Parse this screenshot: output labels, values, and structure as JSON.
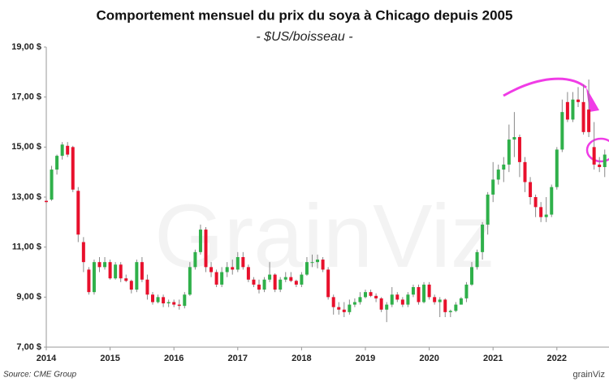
{
  "chart_data": {
    "type": "candlestick",
    "title": "Comportement mensuel du prix du soya à Chicago depuis 2005",
    "subtitle": "- $US/boisseau -",
    "source": "Source: CME Group",
    "logo": "grainViz",
    "watermark": "GrainViz",
    "up_color": "#2fb04a",
    "down_color": "#e8102c",
    "ylim": [
      7,
      19
    ],
    "yticks": [
      {
        "value": 7,
        "label": "7,00 $"
      },
      {
        "value": 9,
        "label": "9,00 $"
      },
      {
        "value": 11,
        "label": "11,00 $"
      },
      {
        "value": 13,
        "label": "13,00 $"
      },
      {
        "value": 15,
        "label": "15,00 $"
      },
      {
        "value": 17,
        "label": "17,00 $"
      },
      {
        "value": 19,
        "label": "19,00 $"
      }
    ],
    "categories": [
      "2014",
      null,
      null,
      null,
      null,
      null,
      null,
      null,
      null,
      null,
      null,
      null,
      "2015",
      null,
      null,
      null,
      null,
      null,
      null,
      null,
      null,
      null,
      null,
      null,
      "2016",
      null,
      null,
      null,
      null,
      null,
      null,
      null,
      null,
      null,
      null,
      null,
      "2017",
      null,
      null,
      null,
      null,
      null,
      null,
      null,
      null,
      null,
      null,
      null,
      "2018",
      null,
      null,
      null,
      null,
      null,
      null,
      null,
      null,
      null,
      null,
      null,
      "2019",
      null,
      null,
      null,
      null,
      null,
      null,
      null,
      null,
      null,
      null,
      null,
      "2020",
      null,
      null,
      null,
      null,
      null,
      null,
      null,
      null,
      null,
      null,
      null,
      "2021",
      null,
      null,
      null,
      null,
      null,
      null,
      null,
      null,
      null,
      null,
      null,
      "2022",
      null,
      null,
      null,
      null,
      null,
      null,
      null,
      null,
      null
    ],
    "open": [
      12.85,
      12.9,
      14.1,
      14.65,
      15.05,
      15.0,
      13.25,
      11.2,
      10.1,
      9.2,
      10.4,
      10.2,
      10.4,
      9.75,
      10.3,
      9.75,
      9.65,
      9.3,
      10.4,
      9.7,
      9.1,
      8.8,
      9.0,
      8.75,
      8.8,
      8.7,
      8.65,
      9.1,
      10.2,
      10.8,
      11.7,
      10.2,
      10.0,
      9.5,
      10.0,
      10.2,
      10.1,
      10.6,
      10.2,
      9.7,
      9.5,
      9.3,
      9.7,
      9.9,
      9.3,
      9.7,
      9.8,
      9.65,
      9.5,
      9.9,
      10.4,
      10.4,
      10.5,
      10.1,
      9.0,
      8.6,
      8.5,
      8.4,
      8.7,
      8.8,
      9.0,
      9.2,
      9.05,
      8.95,
      8.5,
      8.7,
      9.1,
      8.9,
      8.7,
      9.1,
      9.4,
      8.8,
      9.5,
      9.0,
      8.8,
      8.9,
      8.4,
      8.45,
      8.7,
      8.95,
      9.5,
      10.2,
      10.8,
      11.9,
      13.1,
      13.7,
      14.1,
      14.3,
      15.3,
      15.4,
      14.4,
      13.6,
      13.0,
      12.6,
      12.2,
      12.3,
      13.4,
      14.9,
      16.8,
      16.1,
      16.9,
      16.8,
      16.5,
      15.0,
      14.3,
      14.2
    ],
    "high": [
      12.95,
      14.25,
      14.7,
      15.2,
      15.2,
      15.05,
      13.4,
      11.4,
      10.2,
      10.5,
      10.6,
      10.6,
      10.5,
      10.4,
      10.4,
      9.9,
      9.7,
      10.5,
      10.6,
      9.9,
      9.2,
      9.1,
      9.1,
      8.9,
      8.9,
      8.9,
      9.2,
      10.4,
      10.9,
      11.9,
      11.8,
      10.4,
      10.1,
      10.2,
      10.4,
      10.5,
      10.8,
      10.8,
      10.3,
      9.8,
      9.7,
      9.8,
      10.4,
      9.95,
      9.8,
      10.0,
      10.0,
      9.7,
      10.0,
      10.6,
      10.7,
      10.7,
      10.6,
      10.2,
      9.1,
      8.8,
      8.8,
      8.9,
      8.95,
      9.2,
      9.3,
      9.3,
      9.15,
      9.0,
      8.8,
      9.4,
      9.2,
      9.0,
      9.2,
      9.5,
      9.5,
      9.6,
      9.6,
      9.1,
      9.0,
      8.95,
      8.5,
      8.8,
      9.0,
      9.6,
      10.4,
      10.9,
      12.0,
      13.2,
      14.4,
      14.3,
      14.6,
      15.9,
      16.4,
      15.5,
      14.6,
      13.8,
      13.1,
      12.8,
      13.0,
      13.5,
      15.0,
      16.9,
      17.2,
      17.2,
      17.4,
      17.5,
      17.7,
      16.0,
      14.6,
      14.9
    ],
    "low": [
      12.75,
      12.85,
      13.9,
      14.5,
      14.6,
      13.2,
      11.2,
      10.0,
      9.1,
      9.1,
      10.0,
      10.1,
      9.7,
      9.7,
      9.6,
      9.6,
      9.15,
      9.2,
      9.6,
      8.9,
      8.7,
      8.75,
      8.6,
      8.6,
      8.6,
      8.5,
      8.55,
      9.05,
      10.1,
      10.7,
      10.0,
      9.8,
      9.4,
      9.4,
      9.8,
      9.9,
      10.0,
      10.1,
      9.6,
      9.4,
      9.15,
      9.2,
      9.6,
      9.2,
      9.2,
      9.6,
      9.6,
      9.4,
      9.4,
      9.85,
      10.2,
      10.15,
      10.0,
      8.9,
      8.3,
      8.3,
      8.2,
      8.3,
      8.6,
      8.7,
      8.95,
      9.0,
      8.8,
      8.4,
      8.0,
      8.6,
      8.8,
      8.6,
      8.6,
      9.0,
      8.7,
      8.75,
      8.9,
      8.7,
      8.2,
      8.2,
      8.2,
      8.4,
      8.7,
      8.8,
      9.45,
      10.1,
      10.5,
      11.5,
      12.8,
      13.5,
      13.6,
      14.0,
      14.6,
      13.8,
      13.2,
      12.7,
      12.2,
      12.0,
      12.0,
      12.2,
      13.3,
      14.8,
      16.0,
      16.0,
      16.6,
      15.5,
      15.4,
      14.1,
      14.0,
      13.8
    ],
    "close": [
      12.8,
      14.1,
      14.65,
      15.1,
      14.7,
      13.3,
      11.5,
      10.4,
      9.2,
      10.4,
      10.2,
      10.4,
      9.75,
      10.3,
      9.75,
      9.65,
      9.3,
      10.4,
      9.7,
      9.1,
      8.8,
      9.0,
      8.75,
      8.8,
      8.7,
      8.65,
      9.1,
      10.2,
      10.8,
      11.7,
      10.2,
      10.0,
      9.5,
      10.0,
      10.2,
      10.1,
      10.6,
      10.2,
      9.7,
      9.5,
      9.3,
      9.7,
      9.9,
      9.3,
      9.7,
      9.8,
      9.65,
      9.5,
      9.9,
      10.4,
      10.4,
      10.5,
      10.1,
      9.0,
      8.6,
      8.5,
      8.4,
      8.7,
      8.8,
      9.0,
      9.2,
      9.05,
      8.95,
      8.5,
      8.7,
      9.1,
      8.9,
      8.7,
      9.1,
      9.4,
      8.8,
      9.5,
      9.0,
      8.8,
      8.9,
      8.4,
      8.45,
      8.7,
      8.95,
      9.5,
      10.2,
      10.8,
      11.9,
      13.1,
      13.7,
      14.1,
      14.3,
      15.3,
      15.4,
      14.4,
      13.6,
      13.0,
      12.6,
      12.2,
      12.3,
      13.4,
      14.9,
      16.4,
      16.1,
      16.9,
      16.8,
      15.6,
      15.6,
      14.3,
      14.2,
      14.7
    ]
  }
}
